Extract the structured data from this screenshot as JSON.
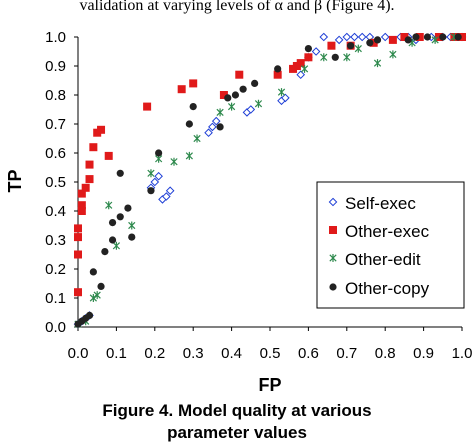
{
  "document": {
    "top_text": "validation at varying levels of α and β (Figure 4).",
    "caption_line1": "Figure 4. Model quality at various",
    "caption_line2": "parameter values"
  },
  "colors": {
    "self_exec": "#1f3fd6",
    "other_exec": "#e01a1a",
    "other_edit": "#2f8a4e",
    "other_copy": "#222222"
  },
  "chart_data": {
    "type": "scatter",
    "title": "",
    "xlabel": "FP",
    "ylabel": "TP",
    "xlim": [
      0,
      1
    ],
    "ylim": [
      0,
      1
    ],
    "x_ticks": [
      "0.0",
      "0.1",
      "0.2",
      "0.3",
      "0.4",
      "0.5",
      "0.6",
      "0.7",
      "0.8",
      "0.9",
      "1.0"
    ],
    "y_ticks": [
      "0.0",
      "0.1",
      "0.2",
      "0.3",
      "0.4",
      "0.5",
      "0.6",
      "0.7",
      "0.8",
      "0.9",
      "1.0"
    ],
    "grid": false,
    "legend_position": "bottom-right",
    "series": [
      {
        "name": "Self-exec",
        "marker": "diamond-open",
        "color": "#1f3fd6",
        "points": [
          [
            0.0,
            0.01
          ],
          [
            0.01,
            0.02
          ],
          [
            0.02,
            0.03
          ],
          [
            0.03,
            0.04
          ],
          [
            0.19,
            0.48
          ],
          [
            0.2,
            0.5
          ],
          [
            0.21,
            0.52
          ],
          [
            0.22,
            0.44
          ],
          [
            0.23,
            0.45
          ],
          [
            0.24,
            0.47
          ],
          [
            0.34,
            0.67
          ],
          [
            0.35,
            0.69
          ],
          [
            0.36,
            0.71
          ],
          [
            0.44,
            0.74
          ],
          [
            0.45,
            0.75
          ],
          [
            0.53,
            0.78
          ],
          [
            0.54,
            0.79
          ],
          [
            0.58,
            0.87
          ],
          [
            0.6,
            0.93
          ],
          [
            0.62,
            0.95
          ],
          [
            0.64,
            1.0
          ],
          [
            0.68,
            0.99
          ],
          [
            0.7,
            1.0
          ],
          [
            0.72,
            1.0
          ],
          [
            0.74,
            1.0
          ],
          [
            0.76,
            1.0
          ],
          [
            0.8,
            1.0
          ],
          [
            0.84,
            1.0
          ],
          [
            0.86,
            1.0
          ],
          [
            0.88,
            0.99
          ],
          [
            0.92,
            1.0
          ],
          [
            0.95,
            1.0
          ],
          [
            0.97,
            1.0
          ],
          [
            1.0,
            1.0
          ]
        ]
      },
      {
        "name": "Other-exec",
        "marker": "square",
        "color": "#e01a1a",
        "points": [
          [
            0.0,
            0.12
          ],
          [
            0.0,
            0.25
          ],
          [
            0.0,
            0.31
          ],
          [
            0.0,
            0.34
          ],
          [
            0.01,
            0.4
          ],
          [
            0.01,
            0.42
          ],
          [
            0.01,
            0.46
          ],
          [
            0.02,
            0.48
          ],
          [
            0.03,
            0.51
          ],
          [
            0.03,
            0.56
          ],
          [
            0.04,
            0.62
          ],
          [
            0.05,
            0.67
          ],
          [
            0.06,
            0.68
          ],
          [
            0.08,
            0.59
          ],
          [
            0.18,
            0.76
          ],
          [
            0.27,
            0.82
          ],
          [
            0.3,
            0.84
          ],
          [
            0.38,
            0.8
          ],
          [
            0.42,
            0.87
          ],
          [
            0.52,
            0.87
          ],
          [
            0.56,
            0.89
          ],
          [
            0.57,
            0.9
          ],
          [
            0.58,
            0.91
          ],
          [
            0.6,
            0.93
          ],
          [
            0.66,
            0.97
          ],
          [
            0.71,
            0.97
          ],
          [
            0.77,
            0.98
          ],
          [
            0.82,
            0.99
          ],
          [
            0.85,
            1.0
          ],
          [
            0.89,
            1.0
          ],
          [
            0.94,
            1.0
          ],
          [
            0.98,
            1.0
          ],
          [
            1.0,
            1.0
          ]
        ]
      },
      {
        "name": "Other-edit",
        "marker": "star",
        "color": "#2f8a4e",
        "points": [
          [
            0.0,
            0.01
          ],
          [
            0.02,
            0.02
          ],
          [
            0.04,
            0.1
          ],
          [
            0.05,
            0.11
          ],
          [
            0.08,
            0.42
          ],
          [
            0.1,
            0.28
          ],
          [
            0.14,
            0.35
          ],
          [
            0.19,
            0.53
          ],
          [
            0.21,
            0.58
          ],
          [
            0.25,
            0.57
          ],
          [
            0.29,
            0.59
          ],
          [
            0.31,
            0.65
          ],
          [
            0.37,
            0.74
          ],
          [
            0.4,
            0.76
          ],
          [
            0.47,
            0.77
          ],
          [
            0.53,
            0.81
          ],
          [
            0.59,
            0.89
          ],
          [
            0.64,
            0.93
          ],
          [
            0.7,
            0.93
          ],
          [
            0.73,
            0.96
          ],
          [
            0.78,
            0.91
          ],
          [
            0.82,
            0.94
          ],
          [
            0.87,
            0.98
          ],
          [
            0.93,
            0.99
          ],
          [
            0.98,
            1.0
          ]
        ]
      },
      {
        "name": "Other-copy",
        "marker": "circle",
        "color": "#222222",
        "points": [
          [
            0.0,
            0.01
          ],
          [
            0.01,
            0.02
          ],
          [
            0.02,
            0.03
          ],
          [
            0.03,
            0.04
          ],
          [
            0.04,
            0.19
          ],
          [
            0.06,
            0.14
          ],
          [
            0.07,
            0.26
          ],
          [
            0.09,
            0.3
          ],
          [
            0.09,
            0.36
          ],
          [
            0.11,
            0.38
          ],
          [
            0.11,
            0.53
          ],
          [
            0.13,
            0.41
          ],
          [
            0.14,
            0.31
          ],
          [
            0.19,
            0.47
          ],
          [
            0.21,
            0.6
          ],
          [
            0.29,
            0.7
          ],
          [
            0.3,
            0.76
          ],
          [
            0.37,
            0.69
          ],
          [
            0.39,
            0.79
          ],
          [
            0.41,
            0.8
          ],
          [
            0.43,
            0.82
          ],
          [
            0.46,
            0.84
          ],
          [
            0.52,
            0.89
          ],
          [
            0.6,
            0.96
          ],
          [
            0.67,
            0.93
          ],
          [
            0.71,
            0.97
          ],
          [
            0.76,
            0.98
          ],
          [
            0.78,
            0.99
          ],
          [
            0.86,
            0.99
          ],
          [
            0.88,
            1.0
          ],
          [
            0.91,
            1.0
          ],
          [
            0.95,
            1.0
          ],
          [
            0.99,
            1.0
          ]
        ]
      }
    ]
  }
}
